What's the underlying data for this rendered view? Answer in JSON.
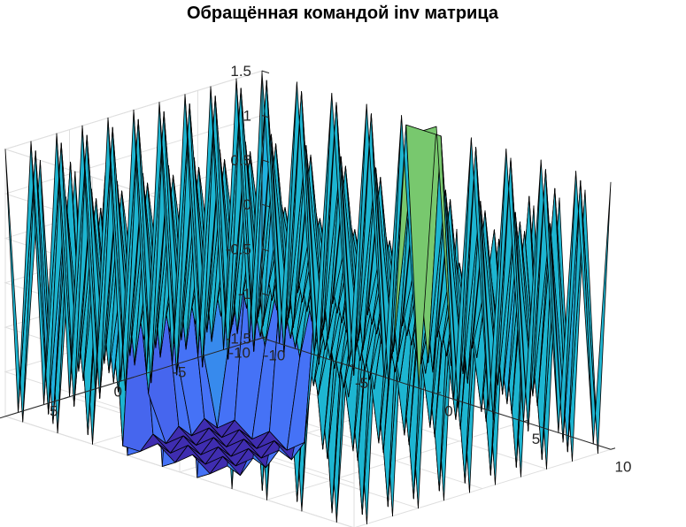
{
  "chart_data": {
    "type": "surface",
    "title": "Обращённая командой inv матрица",
    "xlabel": "",
    "ylabel": "",
    "zlabel": "",
    "x_ticks": [
      "-10",
      "-5",
      "0",
      "5",
      "10"
    ],
    "y_ticks": [
      "-10",
      "-5",
      "0",
      "5",
      "10"
    ],
    "z_ticks": [
      "-1.5",
      "-1",
      "-0.5",
      "0",
      "0.5",
      "1",
      "1.5"
    ],
    "xlim": [
      -10,
      10
    ],
    "ylim": [
      -10,
      10
    ],
    "zlim": [
      -1.5,
      1.5
    ],
    "grid": true,
    "colormap": "parula",
    "colors": {
      "low": "#3e26a8",
      "mid": "#17bfb4",
      "high": "#f9fb0e",
      "edge": "#000000"
    },
    "grid_size": 21,
    "values_pattern": "alternating sign by (i+j) parity with magnitude ≈ 1.5 near the edges and ≈ 0.5 in the central region; one interior block shows values near -1.5"
  }
}
